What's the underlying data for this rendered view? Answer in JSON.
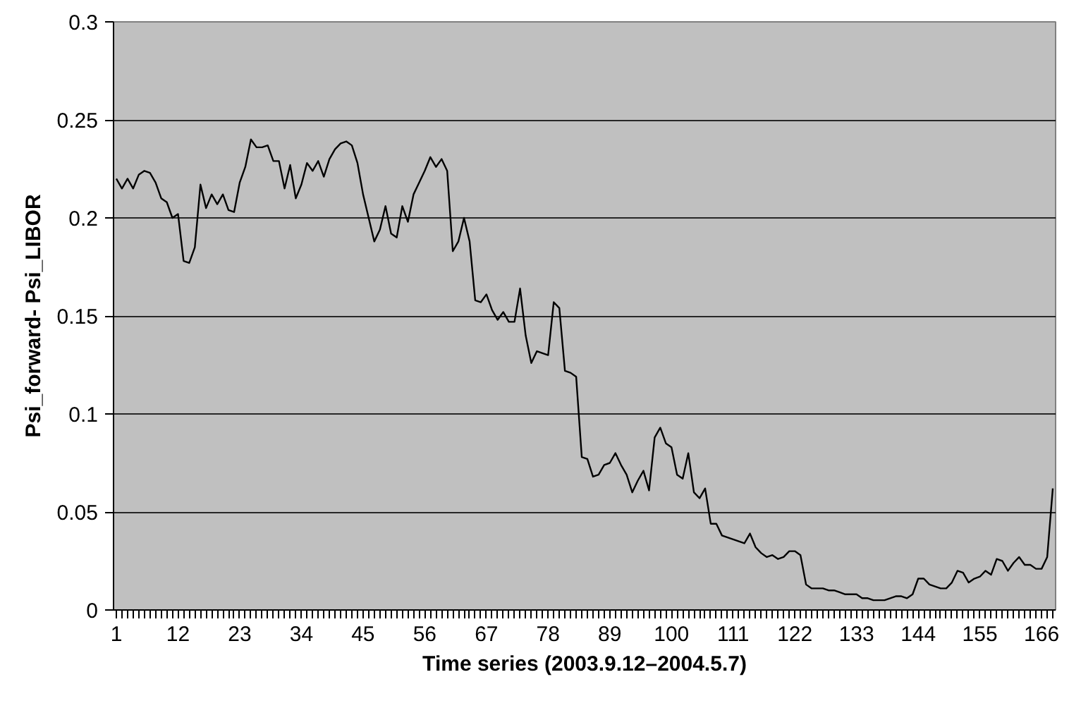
{
  "chart_data": {
    "type": "line",
    "xlabel": "Time series (2003.9.12–2004.5.7)",
    "ylabel": "Psi_forward- Psi_LIBOR",
    "x": [
      1,
      2,
      3,
      4,
      5,
      6,
      7,
      8,
      9,
      10,
      11,
      12,
      13,
      14,
      15,
      16,
      17,
      18,
      19,
      20,
      21,
      22,
      23,
      24,
      25,
      26,
      27,
      28,
      29,
      30,
      31,
      32,
      33,
      34,
      35,
      36,
      37,
      38,
      39,
      40,
      41,
      42,
      43,
      44,
      45,
      46,
      47,
      48,
      49,
      50,
      51,
      52,
      53,
      54,
      55,
      56,
      57,
      58,
      59,
      60,
      61,
      62,
      63,
      64,
      65,
      66,
      67,
      68,
      69,
      70,
      71,
      72,
      73,
      74,
      75,
      76,
      77,
      78,
      79,
      80,
      81,
      82,
      83,
      84,
      85,
      86,
      87,
      88,
      89,
      90,
      91,
      92,
      93,
      94,
      95,
      96,
      97,
      98,
      99,
      100,
      101,
      102,
      103,
      104,
      105,
      106,
      107,
      108,
      109,
      110,
      111,
      112,
      113,
      114,
      115,
      116,
      117,
      118,
      119,
      120,
      121,
      122,
      123,
      124,
      125,
      126,
      127,
      128,
      129,
      130,
      131,
      132,
      133,
      134,
      135,
      136,
      137,
      138,
      139,
      140,
      141,
      142,
      143,
      144,
      145,
      146,
      147,
      148,
      149,
      150,
      151,
      152,
      153,
      154,
      155,
      156,
      157,
      158,
      159,
      160,
      161,
      162,
      163,
      164,
      165,
      166,
      167,
      168
    ],
    "series": [
      {
        "color": "#000000",
        "values": [
          0.22,
          0.215,
          0.22,
          0.215,
          0.222,
          0.224,
          0.223,
          0.218,
          0.21,
          0.208,
          0.2,
          0.202,
          0.178,
          0.177,
          0.185,
          0.217,
          0.205,
          0.212,
          0.207,
          0.212,
          0.204,
          0.203,
          0.218,
          0.226,
          0.24,
          0.236,
          0.236,
          0.237,
          0.229,
          0.229,
          0.215,
          0.227,
          0.21,
          0.217,
          0.228,
          0.224,
          0.229,
          0.221,
          0.23,
          0.235,
          0.238,
          0.239,
          0.237,
          0.228,
          0.212,
          0.2,
          0.188,
          0.194,
          0.206,
          0.192,
          0.19,
          0.206,
          0.198,
          0.212,
          0.218,
          0.224,
          0.231,
          0.226,
          0.23,
          0.224,
          0.183,
          0.188,
          0.2,
          0.188,
          0.158,
          0.157,
          0.161,
          0.153,
          0.148,
          0.152,
          0.147,
          0.147,
          0.164,
          0.14,
          0.126,
          0.132,
          0.131,
          0.13,
          0.157,
          0.154,
          0.122,
          0.121,
          0.119,
          0.078,
          0.077,
          0.068,
          0.069,
          0.074,
          0.075,
          0.08,
          0.074,
          0.069,
          0.06,
          0.066,
          0.071,
          0.061,
          0.088,
          0.093,
          0.085,
          0.083,
          0.069,
          0.067,
          0.08,
          0.06,
          0.057,
          0.062,
          0.044,
          0.044,
          0.038,
          0.037,
          0.036,
          0.035,
          0.034,
          0.039,
          0.032,
          0.029,
          0.027,
          0.028,
          0.026,
          0.027,
          0.03,
          0.03,
          0.028,
          0.013,
          0.011,
          0.011,
          0.011,
          0.01,
          0.01,
          0.009,
          0.008,
          0.008,
          0.008,
          0.006,
          0.006,
          0.005,
          0.005,
          0.005,
          0.006,
          0.007,
          0.007,
          0.006,
          0.008,
          0.016,
          0.016,
          0.013,
          0.012,
          0.011,
          0.011,
          0.014,
          0.02,
          0.019,
          0.014,
          0.016,
          0.017,
          0.02,
          0.018,
          0.026,
          0.025,
          0.02,
          0.024,
          0.027,
          0.023,
          0.023,
          0.021,
          0.021,
          0.027,
          0.062
        ]
      }
    ],
    "xlim": [
      0.5,
      168.5
    ],
    "xticks": [
      1,
      12,
      23,
      34,
      45,
      56,
      67,
      78,
      89,
      100,
      111,
      122,
      133,
      144,
      155,
      166
    ],
    "ylim": [
      0,
      0.3
    ],
    "yticks": [
      0,
      0.05,
      0.1,
      0.15,
      0.2,
      0.25,
      0.3
    ],
    "grid": "y",
    "marker": "none",
    "line_style": "solid"
  }
}
